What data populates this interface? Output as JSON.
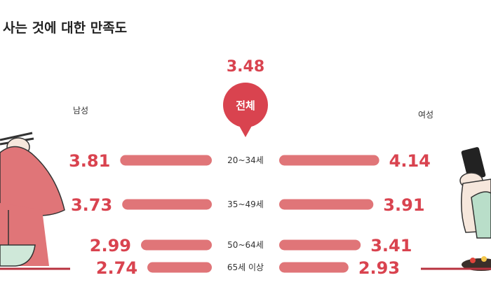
{
  "chart_data": {
    "type": "bar",
    "title": "사는 것에 대한 만족도",
    "total": {
      "label": "전체",
      "value": "3.48"
    },
    "left_label": "남성",
    "right_label": "여성",
    "categories": [
      "20~34세",
      "35~49세",
      "50~64세",
      "65세 이상"
    ],
    "series": [
      {
        "name": "남성",
        "values": [
          3.81,
          3.73,
          2.99,
          2.74
        ],
        "display": [
          "3.81",
          "3.73",
          "2.99",
          "2.74"
        ]
      },
      {
        "name": "여성",
        "values": [
          4.14,
          3.91,
          3.41,
          2.93
        ],
        "display": [
          "4.14",
          "3.91",
          "3.41",
          "2.93"
        ]
      }
    ],
    "colors": {
      "bar": "#e07578",
      "accent": "#d9434f",
      "line": "#b8323f"
    }
  }
}
